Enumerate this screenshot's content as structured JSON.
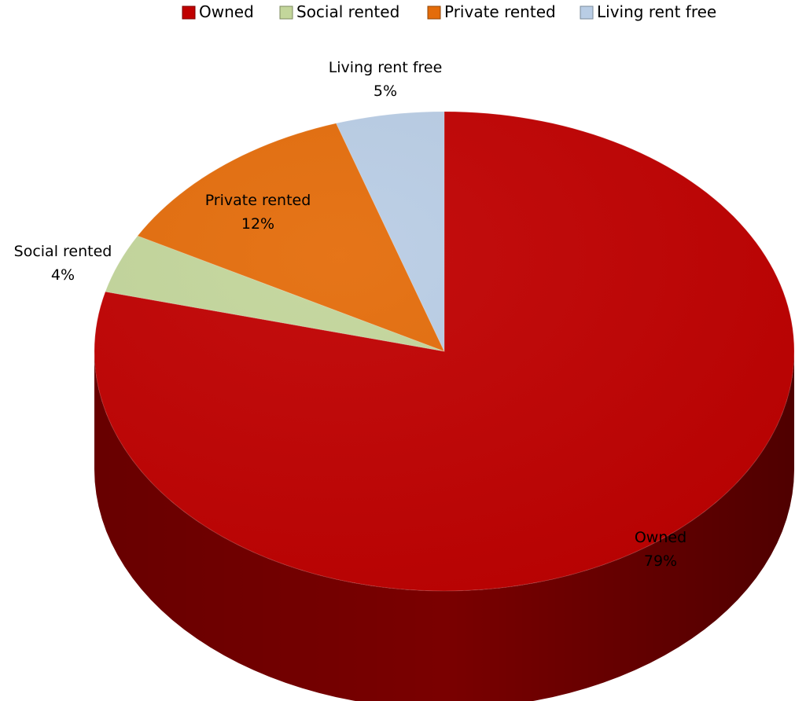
{
  "chart_data": {
    "type": "pie",
    "style": "3d",
    "legend_position": "top",
    "slices": [
      {
        "name": "Owned",
        "label": "Owned",
        "value": 79,
        "value_label": "79%",
        "color": "#c00000",
        "side_color": "#7a0000"
      },
      {
        "name": "Social rented",
        "label": "Social rented",
        "value": 4,
        "value_label": "4%",
        "color": "#c3d69b",
        "side_color": "#7d8a5f"
      },
      {
        "name": "Private rented",
        "label": "Private rented",
        "value": 12,
        "value_label": "12%",
        "color": "#e46c0a",
        "side_color": "#8f4506"
      },
      {
        "name": "Living rent free",
        "label": "Living rent free",
        "value": 5,
        "value_label": "5%",
        "color": "#b9cde5",
        "side_color": "#7a8a9a"
      }
    ]
  }
}
